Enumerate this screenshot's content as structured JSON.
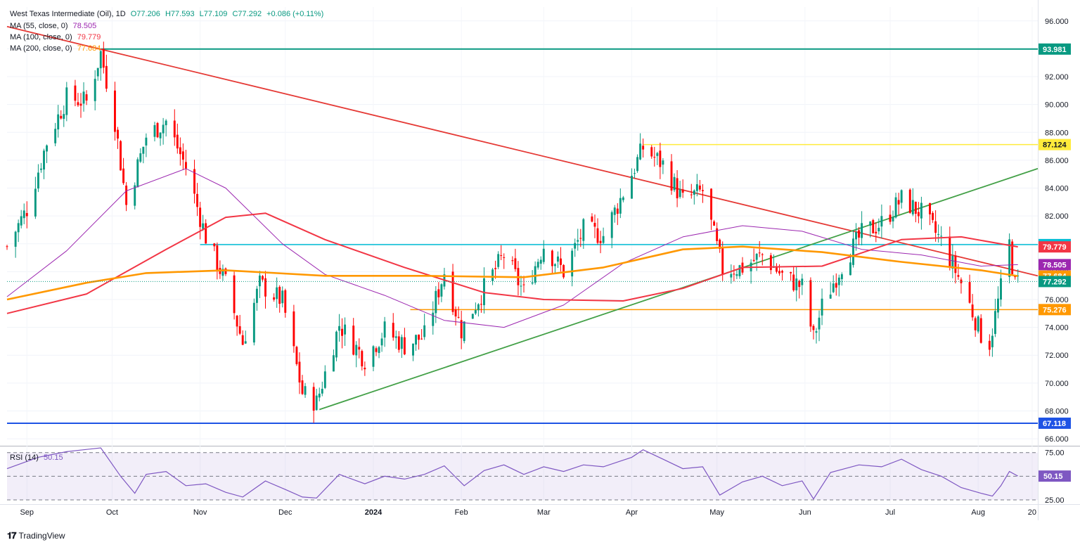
{
  "header": {
    "symbol": "West Texas Intermediate (Oil), 1D",
    "open": "O77.206",
    "high": "H77.593",
    "low": "L77.109",
    "close": "C77.292",
    "change": "+0.086 (+0.11%)"
  },
  "indicators": [
    {
      "label": "MA (55, close, 0)",
      "value": "78.505",
      "color": "#9c27b0"
    },
    {
      "label": "MA (100, close, 0)",
      "value": "79.779",
      "color": "#f23645"
    },
    {
      "label": "MA (200, close, 0)",
      "value": "77.684",
      "color": "#ff9800"
    }
  ],
  "rsi_legend": {
    "label": "RSI (14)",
    "value": "50.15"
  },
  "footer": {
    "brand": "TradingView"
  },
  "colors": {
    "up": "#089981",
    "down": "#ff0000",
    "ma55": "#9c27b0",
    "ma100": "#f23645",
    "ma200": "#ff9800",
    "resistance": "#e53935",
    "trend_up": "#43a047",
    "level_teal": "#00bcd4",
    "level_blue": "#1e53e5",
    "level_yellow": "#ffeb3b",
    "level_dark_green": "#089981"
  },
  "chart_data": [
    {
      "type": "candlestick",
      "title": "West Texas Intermediate (Oil), 1D",
      "ylim": [
        65.5,
        97
      ],
      "y_ticks": [
        "96.000",
        "94.000",
        "92.000",
        "90.000",
        "88.000",
        "86.000",
        "84.000",
        "82.000",
        "80.000",
        "78.000",
        "76.000",
        "74.000",
        "72.000",
        "70.000",
        "68.000",
        "66.000"
      ],
      "x_ticks": [
        "Sep",
        "Oct",
        "Nov",
        "Dec",
        "2024",
        "Feb",
        "Mar",
        "Apr",
        "May",
        "Jun",
        "Jul",
        "Aug",
        "20"
      ],
      "x_range": [
        "2023-08-25",
        "2024-08-22"
      ],
      "ohlc_anchor_closes": [
        [
          "2023-08-25",
          79.8
        ],
        [
          "2023-09-01",
          82.5
        ],
        [
          "2023-09-08",
          87.3
        ],
        [
          "2023-09-15",
          90.5
        ],
        [
          "2023-09-22",
          90.2
        ],
        [
          "2023-09-27",
          93.7
        ],
        [
          "2023-10-02",
          88.8
        ],
        [
          "2023-10-06",
          82.8
        ],
        [
          "2023-10-13",
          87.7
        ],
        [
          "2023-10-20",
          88.8
        ],
        [
          "2023-10-27",
          85.5
        ],
        [
          "2023-11-03",
          80.5
        ],
        [
          "2023-11-10",
          77.2
        ],
        [
          "2023-11-16",
          72.9
        ],
        [
          "2023-11-22",
          77.1
        ],
        [
          "2023-11-30",
          75.9
        ],
        [
          "2023-12-07",
          69.3
        ],
        [
          "2023-12-12",
          68.6
        ],
        [
          "2023-12-20",
          74.2
        ],
        [
          "2023-12-29",
          71.7
        ],
        [
          "2024-01-05",
          73.8
        ],
        [
          "2024-01-12",
          72.7
        ],
        [
          "2024-01-19",
          73.4
        ],
        [
          "2024-01-26",
          78.0
        ],
        [
          "2024-02-01",
          73.8
        ],
        [
          "2024-02-09",
          76.8
        ],
        [
          "2024-02-16",
          79.2
        ],
        [
          "2024-02-23",
          76.5
        ],
        [
          "2024-03-01",
          79.9
        ],
        [
          "2024-03-08",
          78.0
        ],
        [
          "2024-03-15",
          81.0
        ],
        [
          "2024-03-22",
          80.6
        ],
        [
          "2024-03-28",
          83.2
        ],
        [
          "2024-04-05",
          86.9
        ],
        [
          "2024-04-12",
          85.7
        ],
        [
          "2024-04-19",
          83.1
        ],
        [
          "2024-04-26",
          83.8
        ],
        [
          "2024-05-03",
          78.1
        ],
        [
          "2024-05-10",
          78.3
        ],
        [
          "2024-05-17",
          79.2
        ],
        [
          "2024-05-24",
          77.7
        ],
        [
          "2024-05-31",
          76.9
        ],
        [
          "2024-06-04",
          73.2
        ],
        [
          "2024-06-07",
          75.5
        ],
        [
          "2024-06-14",
          78.5
        ],
        [
          "2024-06-21",
          80.7
        ],
        [
          "2024-06-28",
          81.5
        ],
        [
          "2024-07-05",
          83.2
        ],
        [
          "2024-07-12",
          82.2
        ],
        [
          "2024-07-19",
          80.2
        ],
        [
          "2024-07-26",
          77.2
        ],
        [
          "2024-08-02",
          73.5
        ],
        [
          "2024-08-05",
          72.9
        ],
        [
          "2024-08-09",
          76.8
        ],
        [
          "2024-08-12",
          80.0
        ],
        [
          "2024-08-14",
          77.0
        ],
        [
          "2024-08-15",
          77.29
        ]
      ],
      "moving_averages": {
        "ma55": [
          [
            "2023-08-25",
            76.2
          ],
          [
            "2023-09-15",
            79.5
          ],
          [
            "2023-10-06",
            83.8
          ],
          [
            "2023-10-27",
            85.4
          ],
          [
            "2023-11-10",
            84.0
          ],
          [
            "2023-11-30",
            80.0
          ],
          [
            "2023-12-15",
            77.8
          ],
          [
            "2024-01-05",
            76.3
          ],
          [
            "2024-01-26",
            74.5
          ],
          [
            "2024-02-16",
            74.0
          ],
          [
            "2024-03-08",
            75.6
          ],
          [
            "2024-03-29",
            78.6
          ],
          [
            "2024-04-19",
            80.5
          ],
          [
            "2024-05-10",
            81.3
          ],
          [
            "2024-05-31",
            80.9
          ],
          [
            "2024-06-21",
            79.6
          ],
          [
            "2024-07-12",
            79.2
          ],
          [
            "2024-08-02",
            78.4
          ],
          [
            "2024-08-15",
            78.505
          ]
        ],
        "ma100": [
          [
            "2023-08-25",
            75.0
          ],
          [
            "2023-09-22",
            76.4
          ],
          [
            "2023-10-20",
            79.6
          ],
          [
            "2023-11-10",
            81.9
          ],
          [
            "2023-11-24",
            82.2
          ],
          [
            "2023-12-15",
            80.3
          ],
          [
            "2024-01-12",
            78.3
          ],
          [
            "2024-02-09",
            76.5
          ],
          [
            "2024-03-01",
            76.0
          ],
          [
            "2024-03-29",
            75.9
          ],
          [
            "2024-04-19",
            76.8
          ],
          [
            "2024-05-10",
            78.3
          ],
          [
            "2024-06-07",
            78.4
          ],
          [
            "2024-07-05",
            80.3
          ],
          [
            "2024-07-26",
            80.5
          ],
          [
            "2024-08-15",
            79.779
          ]
        ],
        "ma200": [
          [
            "2023-08-25",
            76.0
          ],
          [
            "2023-09-22",
            77.2
          ],
          [
            "2023-10-13",
            77.9
          ],
          [
            "2023-11-10",
            78.1
          ],
          [
            "2023-12-15",
            77.7
          ],
          [
            "2024-01-19",
            77.7
          ],
          [
            "2024-02-23",
            77.6
          ],
          [
            "2024-03-22",
            78.3
          ],
          [
            "2024-04-19",
            79.6
          ],
          [
            "2024-05-10",
            79.8
          ],
          [
            "2024-06-07",
            79.4
          ],
          [
            "2024-07-05",
            78.7
          ],
          [
            "2024-08-02",
            78.1
          ],
          [
            "2024-08-15",
            77.684
          ]
        ]
      },
      "trendlines": [
        {
          "name": "resistance",
          "points": [
            [
              "2023-08-25",
              95.6
            ],
            [
              "2024-08-22",
              77.7
            ]
          ]
        },
        {
          "name": "support",
          "points": [
            [
              "2023-12-13",
              68.1
            ],
            [
              "2024-08-22",
              85.4
            ]
          ]
        }
      ],
      "levels": [
        {
          "value": 93.981,
          "label": "93.981",
          "color": "#089981",
          "from": "2023-09-27"
        },
        {
          "value": 87.124,
          "label": "87.124",
          "color": "#ffeb3b",
          "from": "2024-04-05"
        },
        {
          "value": 79.944,
          "label": "79.944",
          "color": "#00bcd4",
          "from": "2023-11-01"
        },
        {
          "value": 75.276,
          "label": "75.276",
          "color": "#ff9800",
          "from": "2024-01-14"
        },
        {
          "value": 67.118,
          "label": "67.118",
          "color": "#1e53e5",
          "from": "2023-08-25"
        }
      ],
      "price_tags": [
        {
          "value": 93.981,
          "label": "93.981",
          "color": "#089981"
        },
        {
          "value": 87.124,
          "label": "87.124",
          "color": "#ffeb3b"
        },
        {
          "value": 79.944,
          "label": "79.944",
          "color": "#00bcd4"
        },
        {
          "value": 79.779,
          "label": "79.779",
          "color": "#f23645"
        },
        {
          "value": 78.505,
          "label": "78.505",
          "color": "#9c27b0"
        },
        {
          "value": 77.684,
          "label": "77.684",
          "color": "#ff9800"
        },
        {
          "value": 77.292,
          "label": "77.292",
          "color": "#089981"
        },
        {
          "value": 75.276,
          "label": "75.276",
          "color": "#ff9800"
        },
        {
          "value": 67.118,
          "label": "67.118",
          "color": "#1e53e5"
        }
      ]
    },
    {
      "type": "line",
      "title": "RSI (14)",
      "ylim": [
        22,
        80
      ],
      "y_ticks": [
        "75.00",
        "25.00"
      ],
      "bands": [
        75,
        50,
        25
      ],
      "current_value": "50.15",
      "series": [
        [
          "2023-08-25",
          58
        ],
        [
          "2023-09-05",
          70
        ],
        [
          "2023-09-15",
          76
        ],
        [
          "2023-09-27",
          80
        ],
        [
          "2023-10-04",
          50
        ],
        [
          "2023-10-09",
          32
        ],
        [
          "2023-10-13",
          52
        ],
        [
          "2023-10-20",
          55
        ],
        [
          "2023-10-27",
          40
        ],
        [
          "2023-11-03",
          42
        ],
        [
          "2023-11-10",
          33
        ],
        [
          "2023-11-16",
          28
        ],
        [
          "2023-11-24",
          45
        ],
        [
          "2023-12-01",
          36
        ],
        [
          "2023-12-07",
          28
        ],
        [
          "2023-12-12",
          27
        ],
        [
          "2023-12-20",
          52
        ],
        [
          "2023-12-29",
          42
        ],
        [
          "2024-01-05",
          50
        ],
        [
          "2024-01-12",
          47
        ],
        [
          "2024-01-19",
          52
        ],
        [
          "2024-01-26",
          61
        ],
        [
          "2024-02-02",
          40
        ],
        [
          "2024-02-09",
          56
        ],
        [
          "2024-02-16",
          62
        ],
        [
          "2024-02-23",
          52
        ],
        [
          "2024-03-01",
          60
        ],
        [
          "2024-03-08",
          55
        ],
        [
          "2024-03-15",
          62
        ],
        [
          "2024-03-22",
          60
        ],
        [
          "2024-04-01",
          70
        ],
        [
          "2024-04-05",
          78
        ],
        [
          "2024-04-12",
          68
        ],
        [
          "2024-04-19",
          58
        ],
        [
          "2024-04-26",
          60
        ],
        [
          "2024-05-02",
          30
        ],
        [
          "2024-05-10",
          44
        ],
        [
          "2024-05-17",
          50
        ],
        [
          "2024-05-24",
          40
        ],
        [
          "2024-05-31",
          45
        ],
        [
          "2024-06-04",
          26
        ],
        [
          "2024-06-10",
          54
        ],
        [
          "2024-06-20",
          62
        ],
        [
          "2024-06-28",
          60
        ],
        [
          "2024-07-05",
          68
        ],
        [
          "2024-07-12",
          57
        ],
        [
          "2024-07-19",
          50
        ],
        [
          "2024-07-26",
          38
        ],
        [
          "2024-08-02",
          32
        ],
        [
          "2024-08-06",
          29
        ],
        [
          "2024-08-09",
          40
        ],
        [
          "2024-08-12",
          55
        ],
        [
          "2024-08-15",
          50.15
        ]
      ]
    }
  ]
}
